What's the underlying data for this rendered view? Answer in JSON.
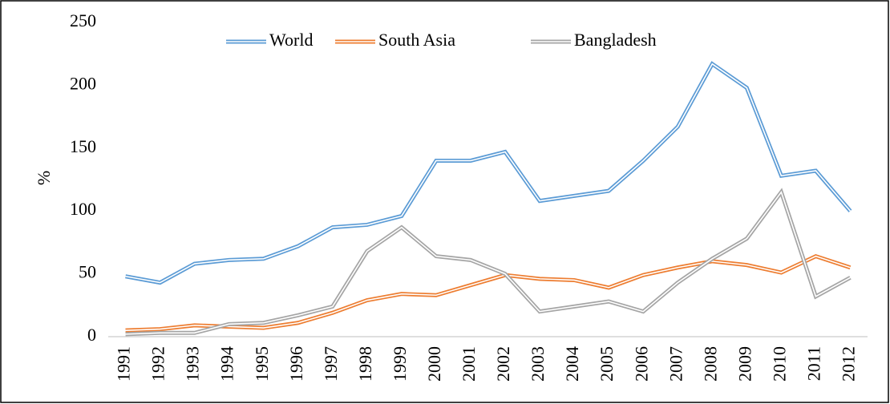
{
  "chart_data": {
    "type": "line",
    "y_label": "%",
    "categories": [
      "1991",
      "1992",
      "1993",
      "1994",
      "1995",
      "1996",
      "1997",
      "1998",
      "1999",
      "2000",
      "2001",
      "2002",
      "2003",
      "2004",
      "2005",
      "2006",
      "2007",
      "2008",
      "2009",
      "2010",
      "2011",
      "2012"
    ],
    "series": [
      {
        "name": "World",
        "color": "#5b9bd5",
        "values": [
          48,
          43,
          58,
          61,
          62,
          72,
          87,
          89,
          96,
          140,
          140,
          147,
          108,
          112,
          116,
          140,
          167,
          217,
          198,
          128,
          132,
          100
        ]
      },
      {
        "name": "South Asia",
        "color": "#ed7d31",
        "values": [
          5,
          6,
          9,
          8,
          7,
          11,
          19,
          29,
          34,
          33,
          41,
          49,
          46,
          45,
          39,
          49,
          55,
          60,
          57,
          51,
          64,
          55
        ]
      },
      {
        "name": "Bangladesh",
        "color": "#a5a5a5",
        "values": [
          2,
          3,
          3,
          10,
          11,
          17,
          24,
          68,
          87,
          64,
          61,
          50,
          20,
          24,
          28,
          20,
          43,
          62,
          78,
          115,
          32,
          47
        ]
      }
    ],
    "ylim": [
      0,
      250
    ],
    "yticks": [
      0,
      50,
      100,
      150,
      200,
      250
    ],
    "legend": "top"
  }
}
